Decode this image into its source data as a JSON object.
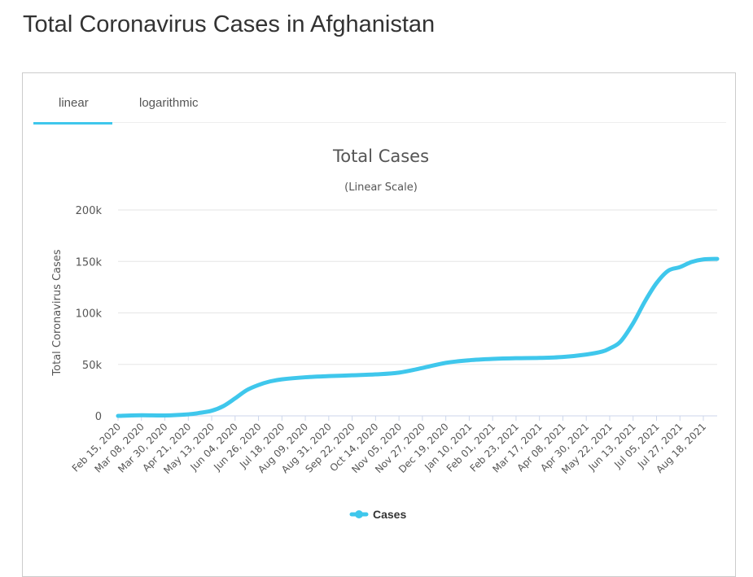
{
  "page": {
    "title": "Total Coronavirus Cases in Afghanistan"
  },
  "tabs": [
    {
      "label": "linear",
      "active": true
    },
    {
      "label": "logarithmic",
      "active": false
    }
  ],
  "colors": {
    "series": "#3fc7ec",
    "grid": "#e6e6e6",
    "tab_active": "#3fc7ec"
  },
  "chart_data": {
    "type": "line",
    "title": "Total Cases",
    "subtitle": "(Linear Scale)",
    "ylabel": "Total Coronavirus Cases",
    "xlabel": "",
    "ylim": [
      0,
      200000
    ],
    "yticks": [
      {
        "value": 0,
        "label": "0"
      },
      {
        "value": 50000,
        "label": "50k"
      },
      {
        "value": 100000,
        "label": "100k"
      },
      {
        "value": 150000,
        "label": "150k"
      },
      {
        "value": 200000,
        "label": "200k"
      }
    ],
    "xlim": [
      "2020-02-15",
      "2021-08-31"
    ],
    "xtick_labels": [
      "Feb 15, 2020",
      "Mar 08, 2020",
      "Mar 30, 2020",
      "Apr 21, 2020",
      "May 13, 2020",
      "Jun 04, 2020",
      "Jun 26, 2020",
      "Jul 18, 2020",
      "Aug 09, 2020",
      "Aug 31, 2020",
      "Sep 22, 2020",
      "Oct 14, 2020",
      "Nov 05, 2020",
      "Nov 27, 2020",
      "Dec 19, 2020",
      "Jan 10, 2021",
      "Feb 01, 2021",
      "Feb 23, 2021",
      "Mar 17, 2021",
      "Apr 08, 2021",
      "Apr 30, 2021",
      "May 22, 2021",
      "Jun 13, 2021",
      "Jul 05, 2021",
      "Jul 27, 2021",
      "Aug 18, 2021"
    ],
    "xtick_dates": [
      "2020-02-15",
      "2020-03-08",
      "2020-03-30",
      "2020-04-21",
      "2020-05-13",
      "2020-06-04",
      "2020-06-26",
      "2020-07-18",
      "2020-08-09",
      "2020-08-31",
      "2020-09-22",
      "2020-10-14",
      "2020-11-05",
      "2020-11-27",
      "2020-12-19",
      "2021-01-10",
      "2021-02-01",
      "2021-02-23",
      "2021-03-17",
      "2021-04-08",
      "2021-04-30",
      "2021-05-22",
      "2021-06-13",
      "2021-07-05",
      "2021-07-27",
      "2021-08-18"
    ],
    "legend": {
      "position": "bottom-center"
    },
    "grid": true,
    "series": [
      {
        "name": "Cases",
        "x": [
          "2020-02-15",
          "2020-03-08",
          "2020-03-30",
          "2020-04-21",
          "2020-05-01",
          "2020-05-13",
          "2020-05-24",
          "2020-06-04",
          "2020-06-15",
          "2020-06-26",
          "2020-07-07",
          "2020-07-18",
          "2020-08-09",
          "2020-08-31",
          "2020-09-22",
          "2020-10-14",
          "2020-11-05",
          "2020-11-27",
          "2020-12-19",
          "2021-01-10",
          "2021-02-01",
          "2021-02-23",
          "2021-03-17",
          "2021-04-08",
          "2021-04-30",
          "2021-05-15",
          "2021-05-22",
          "2021-06-01",
          "2021-06-13",
          "2021-06-24",
          "2021-07-05",
          "2021-07-16",
          "2021-07-27",
          "2021-08-07",
          "2021-08-18",
          "2021-08-31"
        ],
        "y": [
          0,
          600,
          400,
          1500,
          2800,
          5000,
          9500,
          17000,
          25000,
          30000,
          33500,
          35500,
          37500,
          38600,
          39400,
          40300,
          42000,
          46500,
          51500,
          54000,
          55300,
          56000,
          56300,
          57200,
          59600,
          62500,
          65500,
          72000,
          90000,
          111000,
          129000,
          141000,
          144500,
          149500,
          152000,
          152500
        ]
      }
    ]
  }
}
